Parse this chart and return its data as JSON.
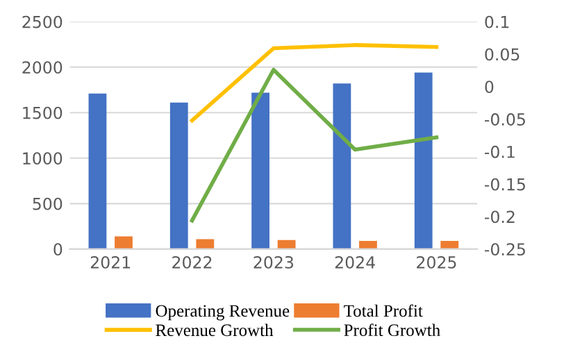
{
  "chart_data": {
    "type": "bar",
    "categories": [
      "2021",
      "2022",
      "2023",
      "2024",
      "2025"
    ],
    "series": [
      {
        "name": "Operating Revenue",
        "color": "#4472c4",
        "values": [
          1710,
          1610,
          1720,
          1820,
          1940
        ]
      },
      {
        "name": "Total Profit",
        "color": "#ed7d31",
        "values": [
          140,
          110,
          100,
          90,
          90
        ]
      },
      {
        "name": "Revenue Growth",
        "type": "line",
        "axis": "y2",
        "color": "#ffc000",
        "values": [
          null,
          -0.052,
          0.059,
          0.064,
          0.061
        ]
      },
      {
        "name": "Profit Growth",
        "type": "line",
        "axis": "y2",
        "color": "#70ad47",
        "values": [
          null,
          -0.206,
          0.026,
          -0.097,
          -0.078
        ]
      }
    ],
    "ylim": [
      0,
      2500
    ],
    "yticks": [
      0,
      500,
      1000,
      1500,
      2000,
      2500
    ],
    "y2lim": [
      -0.25,
      0.1
    ],
    "y2ticks": [
      -0.25,
      -0.2,
      -0.15,
      -0.1,
      -0.05,
      0,
      0.05,
      0.1
    ],
    "grid": "y",
    "legend": "bottom",
    "marker": "none",
    "line_style": "solid"
  }
}
